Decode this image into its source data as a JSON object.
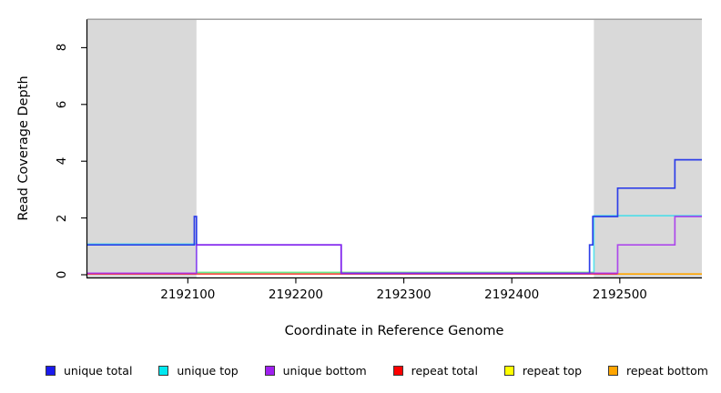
{
  "axes": {
    "x_label": "Coordinate in Reference Genome",
    "y_label": "Read Coverage Depth"
  },
  "legend": {
    "items": [
      {
        "label": "unique total",
        "color": "#1a1aee"
      },
      {
        "label": "unique top",
        "color": "#00e8f0"
      },
      {
        "label": "unique bottom",
        "color": "#a020f0"
      },
      {
        "label": "repeat total",
        "color": "#ff0000"
      },
      {
        "label": "repeat top",
        "color": "#ffff00"
      },
      {
        "label": "repeat bottom",
        "color": "#ffa500"
      }
    ]
  },
  "chart_data": {
    "type": "line",
    "subtype": "step-after-coverage",
    "title": "",
    "xlabel": "Coordinate in Reference Genome",
    "ylabel": "Read Coverage Depth",
    "xlim": [
      2192007,
      2192576
    ],
    "ylim": [
      0,
      9
    ],
    "x_ticks": [
      2192100,
      2192200,
      2192300,
      2192400,
      2192500
    ],
    "y_ticks": [
      0,
      2,
      4,
      6,
      8
    ],
    "grid": false,
    "legend_position": "bottom",
    "top_boundary_y": 9,
    "shade_color": "#d9d9d9",
    "shaded_regions": [
      {
        "name": "repeat-region-left",
        "x0": 2192007,
        "x1": 2192108
      },
      {
        "name": "repeat-region-right",
        "x0": 2192476,
        "x1": 2192576
      }
    ],
    "series": [
      {
        "name": "unique total",
        "color": "#2e3fe8",
        "points": [
          [
            2192007,
            1
          ],
          [
            2192106,
            2
          ],
          [
            2192108,
            1
          ],
          [
            2192242,
            0
          ],
          [
            2192472,
            1
          ],
          [
            2192475,
            2
          ],
          [
            2192498,
            3
          ],
          [
            2192551,
            4
          ]
        ],
        "end_x": 2192576
      },
      {
        "name": "unique top",
        "color": "#00e0f0",
        "points": [
          [
            2192007,
            1
          ],
          [
            2192108,
            0
          ],
          [
            2192476,
            2
          ]
        ],
        "end_x": 2192576
      },
      {
        "name": "unique bottom",
        "color": "#a020f0",
        "points": [
          [
            2192007,
            0
          ],
          [
            2192108,
            1
          ],
          [
            2192242,
            0
          ],
          [
            2192498,
            1
          ],
          [
            2192551,
            2
          ]
        ],
        "end_x": 2192576
      },
      {
        "name": "repeat total",
        "color": "#ff0000",
        "points": [
          [
            2192007,
            0
          ]
        ],
        "end_x": 2192576
      },
      {
        "name": "repeat top",
        "color": "#ffff00",
        "points": [
          [
            2192007,
            0
          ]
        ],
        "end_x": 2192576
      },
      {
        "name": "repeat bottom",
        "color": "#ffa500",
        "points": [
          [
            2192007,
            0
          ]
        ],
        "end_x": 2192576
      }
    ]
  }
}
